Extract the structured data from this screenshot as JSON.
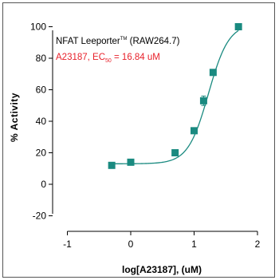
{
  "chart_data": {
    "type": "scatter",
    "annotation": {
      "title": "NFAT Leeporter",
      "title_tm": "TM",
      "title_suffix": " (RAW264.7)",
      "ec50_prefix": "A23187, EC",
      "ec50_sub": "50",
      "ec50_value": " = 16.84 uM"
    },
    "xlabel": "log[A23187], (uM)",
    "ylabel": "% Activity",
    "xlim": [
      -1,
      2
    ],
    "ylim": [
      -20,
      120
    ],
    "xticks": [
      -1,
      0,
      1,
      2
    ],
    "yticks": [
      -20,
      0,
      20,
      40,
      60,
      80,
      100,
      120
    ],
    "series": [
      {
        "marker_color": "#1a8a80",
        "curve_color": "#1a8a80",
        "x": [
          -0.3,
          0.0,
          0.7,
          1.0,
          1.15,
          1.3,
          1.7
        ],
        "y": [
          12,
          14,
          20,
          34,
          53,
          71,
          100
        ],
        "error_y": [
          0,
          0,
          0,
          0,
          3,
          0,
          0
        ]
      }
    ],
    "fit": {
      "bottom": 13,
      "top": 102,
      "log_ec50": 1.226,
      "hill": 2.7
    },
    "annotation_colors": {
      "title": "#000000",
      "ec50": "#e8202a"
    },
    "grid": false
  }
}
